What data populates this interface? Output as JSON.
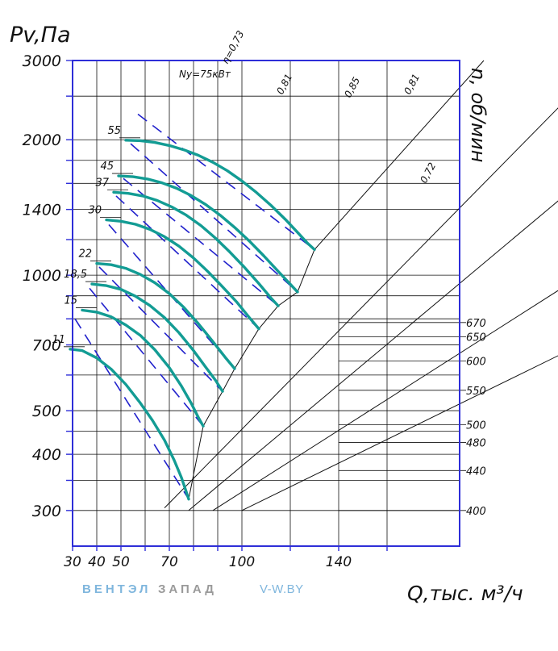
{
  "chart_data": {
    "type": "line",
    "ylabel": "Pv,Па",
    "xlabel": "Q,тыс. м³/ч",
    "y2label": "n, об/мин",
    "colors": {
      "axis": "#2e2ed8",
      "grid": "#111111",
      "curve": "#139c94",
      "iso": "#2121cc"
    },
    "x_ticks": [
      30,
      40,
      50,
      70,
      100,
      140
    ],
    "x_tick_labels": [
      "30",
      "40",
      "50",
      "70",
      "100",
      "140"
    ],
    "y_ticks": [
      300,
      400,
      500,
      700,
      1000,
      1400,
      2000,
      3000
    ],
    "y_tick_labels": [
      "300",
      "400",
      "500",
      "700",
      "1000",
      "1400",
      "2000",
      "3000"
    ],
    "rpm_ticks": [
      {
        "label": "670",
        "y": 785
      },
      {
        "label": "650",
        "y": 730
      },
      {
        "label": "600",
        "y": 645
      },
      {
        "label": "550",
        "y": 555
      },
      {
        "label": "500",
        "y": 465
      },
      {
        "label": "480",
        "y": 425
      },
      {
        "label": "440",
        "y": 368
      },
      {
        "label": "400",
        "y": 300
      }
    ],
    "power_prefix": "Ny=75кВт",
    "power_curves": [
      {
        "name": "11",
        "points": [
          [
            29,
            685
          ],
          [
            34,
            680
          ],
          [
            40,
            655
          ],
          [
            46,
            618
          ],
          [
            52,
            572
          ],
          [
            58,
            520
          ],
          [
            63,
            476
          ],
          [
            68,
            430
          ],
          [
            72,
            388
          ],
          [
            75,
            355
          ],
          [
            77,
            330
          ],
          [
            78,
            318
          ]
        ]
      },
      {
        "name": "15",
        "points": [
          [
            34,
            836
          ],
          [
            40,
            828
          ],
          [
            46,
            808
          ],
          [
            52,
            775
          ],
          [
            58,
            735
          ],
          [
            64,
            683
          ],
          [
            70,
            623
          ],
          [
            75,
            567
          ],
          [
            79,
            520
          ],
          [
            82,
            483
          ],
          [
            84,
            462
          ]
        ]
      },
      {
        "name": "18,5",
        "points": [
          [
            38,
            956
          ],
          [
            44,
            948
          ],
          [
            50,
            930
          ],
          [
            56,
            898
          ],
          [
            62,
            856
          ],
          [
            68,
            805
          ],
          [
            74,
            745
          ],
          [
            80,
            680
          ],
          [
            85,
            625
          ],
          [
            89,
            585
          ],
          [
            92,
            552
          ]
        ]
      },
      {
        "name": "22",
        "points": [
          [
            40,
            1062
          ],
          [
            46,
            1055
          ],
          [
            52,
            1036
          ],
          [
            58,
            1004
          ],
          [
            64,
            962
          ],
          [
            70,
            910
          ],
          [
            76,
            848
          ],
          [
            82,
            780
          ],
          [
            88,
            712
          ],
          [
            93,
            658
          ],
          [
            97,
            620
          ]
        ]
      },
      {
        "name": "30",
        "points": [
          [
            44,
            1327
          ],
          [
            50,
            1318
          ],
          [
            56,
            1298
          ],
          [
            62,
            1264
          ],
          [
            68,
            1218
          ],
          [
            74,
            1160
          ],
          [
            80,
            1092
          ],
          [
            86,
            1018
          ],
          [
            92,
            942
          ],
          [
            98,
            870
          ],
          [
            103,
            806
          ],
          [
            107,
            760
          ]
        ]
      },
      {
        "name": "37",
        "points": [
          [
            47,
            1529
          ],
          [
            53,
            1520
          ],
          [
            59,
            1500
          ],
          [
            65,
            1466
          ],
          [
            71,
            1418
          ],
          [
            77,
            1360
          ],
          [
            83,
            1290
          ],
          [
            89,
            1210
          ],
          [
            95,
            1126
          ],
          [
            101,
            1042
          ],
          [
            107,
            958
          ],
          [
            112,
            890
          ],
          [
            115,
            855
          ]
        ]
      },
      {
        "name": "45",
        "points": [
          [
            49,
            1662
          ],
          [
            55,
            1655
          ],
          [
            61,
            1636
          ],
          [
            67,
            1604
          ],
          [
            73,
            1560
          ],
          [
            79,
            1503
          ],
          [
            85,
            1436
          ],
          [
            91,
            1360
          ],
          [
            97,
            1277
          ],
          [
            103,
            1192
          ],
          [
            109,
            1105
          ],
          [
            115,
            1020
          ],
          [
            120,
            955
          ],
          [
            123,
            918
          ]
        ]
      },
      {
        "name": "55",
        "points": [
          [
            52,
            1995
          ],
          [
            58,
            1990
          ],
          [
            64,
            1972
          ],
          [
            70,
            1942
          ],
          [
            76,
            1900
          ],
          [
            82,
            1847
          ],
          [
            88,
            1782
          ],
          [
            94,
            1706
          ],
          [
            100,
            1620
          ],
          [
            106,
            1527
          ],
          [
            112,
            1430
          ],
          [
            118,
            1330
          ],
          [
            123,
            1245
          ],
          [
            127,
            1180
          ],
          [
            130,
            1140
          ]
        ]
      }
    ],
    "efficiency_lines": [
      {
        "label": "η=0,73",
        "points": [
          [
            78,
            318
          ],
          [
            84,
            462
          ],
          [
            92,
            552
          ],
          [
            97,
            620
          ],
          [
            107,
            760
          ],
          [
            115,
            855
          ],
          [
            123,
            918
          ],
          [
            130,
            1140
          ],
          [
            200,
            3000
          ]
        ]
      },
      {
        "label": "0,81",
        "points": [
          [
            68,
            304
          ],
          [
            250,
            3000
          ]
        ]
      },
      {
        "label": "0,85",
        "points": [
          [
            78,
            300
          ],
          [
            300,
            3000
          ]
        ]
      },
      {
        "label": "0,81",
        "points": [
          [
            88,
            300
          ],
          [
            380,
            3000
          ]
        ]
      },
      {
        "label": "0,72",
        "points": [
          [
            100,
            300
          ],
          [
            480,
            3000
          ]
        ]
      }
    ],
    "isorpm_lines": [
      {
        "rpm": "400",
        "points": [
          [
            31,
            800
          ],
          [
            78,
            318
          ]
        ]
      },
      {
        "rpm": "440",
        "points": [
          [
            37,
            935
          ],
          [
            84,
            462
          ]
        ]
      },
      {
        "rpm": "480",
        "points": [
          [
            41,
            1043
          ],
          [
            92,
            552
          ]
        ]
      },
      {
        "rpm": "500",
        "points": [
          [
            45,
            1295
          ],
          [
            97,
            620
          ]
        ]
      },
      {
        "rpm": "550",
        "points": [
          [
            48,
            1500
          ],
          [
            107,
            760
          ]
        ]
      },
      {
        "rpm": "600",
        "points": [
          [
            51,
            1640
          ],
          [
            115,
            855
          ]
        ]
      },
      {
        "rpm": "650",
        "points": [
          [
            54,
            1960
          ],
          [
            123,
            918
          ]
        ]
      },
      {
        "rpm": "670",
        "points": [
          [
            57,
            2280
          ],
          [
            130,
            1140
          ]
        ]
      }
    ]
  },
  "watermark": {
    "brand_a": "ВЕНТЭЛ",
    "brand_b": "ЗАПАД",
    "url": "V-W.BY"
  }
}
